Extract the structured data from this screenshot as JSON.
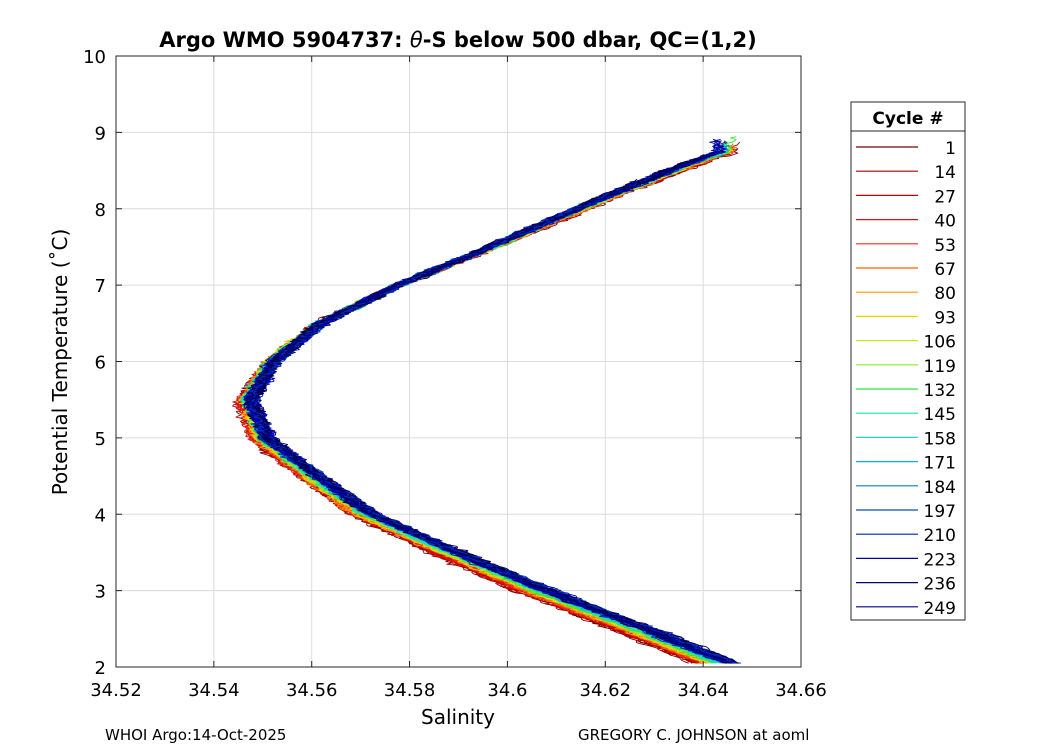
{
  "chart_data": {
    "type": "line",
    "title_prefix": "Argo WMO 5904737: ",
    "title_symbol": "θ",
    "title_suffix": "-S below 500 dbar,  QC=(1,2)",
    "xlabel": "Salinity",
    "ylabel": "Potential Temperature (˚C)",
    "xlim": [
      34.52,
      34.66
    ],
    "ylim": [
      2,
      10
    ],
    "xticks": [
      "34.52",
      "34.54",
      "34.56",
      "34.58",
      "34.6",
      "34.62",
      "34.64",
      "34.66"
    ],
    "yticks": [
      "2",
      "3",
      "4",
      "5",
      "6",
      "7",
      "8",
      "9",
      "10"
    ],
    "grid": true,
    "legend_title": "Cycle #",
    "legend_position": "right-outside",
    "series": [
      {
        "name": "1",
        "color": "#7f0000"
      },
      {
        "name": "14",
        "color": "#a60000"
      },
      {
        "name": "27",
        "color": "#cc0000"
      },
      {
        "name": "40",
        "color": "#e01010"
      },
      {
        "name": "53",
        "color": "#f02a1a"
      },
      {
        "name": "67",
        "color": "#ff6000"
      },
      {
        "name": "80",
        "color": "#ff9900"
      },
      {
        "name": "93",
        "color": "#f2d000"
      },
      {
        "name": "106",
        "color": "#c9e61a"
      },
      {
        "name": "119",
        "color": "#80ee2a"
      },
      {
        "name": "132",
        "color": "#33e63c"
      },
      {
        "name": "145",
        "color": "#1ae6a0"
      },
      {
        "name": "158",
        "color": "#1ad9d0"
      },
      {
        "name": "171",
        "color": "#00b3d9"
      },
      {
        "name": "184",
        "color": "#0080c0"
      },
      {
        "name": "197",
        "color": "#0050b0"
      },
      {
        "name": "210",
        "color": "#0020c0"
      },
      {
        "name": "223",
        "color": "#0000a0"
      },
      {
        "name": "236",
        "color": "#00007a"
      },
      {
        "name": "249",
        "color": "#000090"
      }
    ],
    "profile_shape": {
      "theta": [
        2.05,
        2.5,
        3.0,
        3.5,
        4.0,
        4.5,
        5.0,
        5.5,
        6.0,
        6.5,
        7.0,
        7.5,
        8.0,
        8.5,
        8.75
      ],
      "salinity": [
        34.643,
        34.626,
        34.606,
        34.588,
        34.571,
        34.56,
        34.55,
        34.547,
        34.552,
        34.562,
        34.578,
        34.597,
        34.615,
        34.634,
        34.645
      ]
    }
  },
  "footer": {
    "left": "WHOI Argo:14-Oct-2025",
    "right": "GREGORY C. JOHNSON at aoml"
  }
}
